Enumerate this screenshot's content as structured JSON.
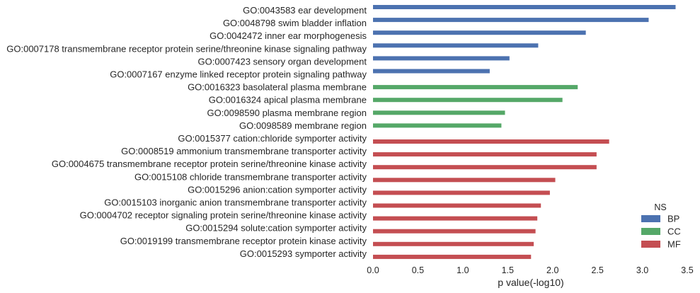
{
  "chart_data": {
    "type": "bar",
    "orientation": "horizontal",
    "xlabel": "p value(-log10)",
    "xlim": [
      0.0,
      3.5
    ],
    "xticks": [
      "0.0",
      "0.5",
      "1.0",
      "1.5",
      "2.0",
      "2.5",
      "3.0",
      "3.5"
    ],
    "grid": false,
    "legend": {
      "title": "NS",
      "placement": "bottom-right",
      "entries": [
        {
          "name": "BP",
          "color": "#4c72b0"
        },
        {
          "name": "CC",
          "color": "#55a868"
        },
        {
          "name": "MF",
          "color": "#c44e52"
        }
      ]
    },
    "categories": [
      {
        "label": "GO:0043583 ear development",
        "ns": "BP",
        "value": 3.37
      },
      {
        "label": "GO:0048798 swim bladder inflation",
        "ns": "BP",
        "value": 3.07
      },
      {
        "label": "GO:0042472 inner ear morphogenesis",
        "ns": "BP",
        "value": 2.37
      },
      {
        "label": "GO:0007178 transmembrane receptor protein serine/threonine kinase signaling pathway",
        "ns": "BP",
        "value": 1.84
      },
      {
        "label": "GO:0007423 sensory organ development",
        "ns": "BP",
        "value": 1.52
      },
      {
        "label": "GO:0007167 enzyme linked receptor protein signaling pathway",
        "ns": "BP",
        "value": 1.3
      },
      {
        "label": "GO:0016323 basolateral plasma membrane",
        "ns": "CC",
        "value": 2.28
      },
      {
        "label": "GO:0016324 apical plasma membrane",
        "ns": "CC",
        "value": 2.11
      },
      {
        "label": "GO:0098590 plasma membrane region",
        "ns": "CC",
        "value": 1.47
      },
      {
        "label": "GO:0098589 membrane region",
        "ns": "CC",
        "value": 1.43
      },
      {
        "label": "GO:0015377 cation:chloride symporter activity",
        "ns": "MF",
        "value": 2.63
      },
      {
        "label": "GO:0008519 ammonium transmembrane transporter activity",
        "ns": "MF",
        "value": 2.49
      },
      {
        "label": "GO:0004675 transmembrane receptor protein serine/threonine kinase activity",
        "ns": "MF",
        "value": 2.49
      },
      {
        "label": "GO:0015108 chloride transmembrane transporter activity",
        "ns": "MF",
        "value": 2.03
      },
      {
        "label": "GO:0015296 anion:cation symporter activity",
        "ns": "MF",
        "value": 1.97
      },
      {
        "label": "GO:0015103 inorganic anion transmembrane transporter activity",
        "ns": "MF",
        "value": 1.87
      },
      {
        "label": "GO:0004702 receptor signaling protein serine/threonine kinase activity",
        "ns": "MF",
        "value": 1.83
      },
      {
        "label": "GO:0015294 solute:cation symporter activity",
        "ns": "MF",
        "value": 1.81
      },
      {
        "label": "GO:0019199 transmembrane receptor protein kinase activity",
        "ns": "MF",
        "value": 1.79
      },
      {
        "label": "GO:0015293 symporter activity",
        "ns": "MF",
        "value": 1.76
      }
    ]
  }
}
